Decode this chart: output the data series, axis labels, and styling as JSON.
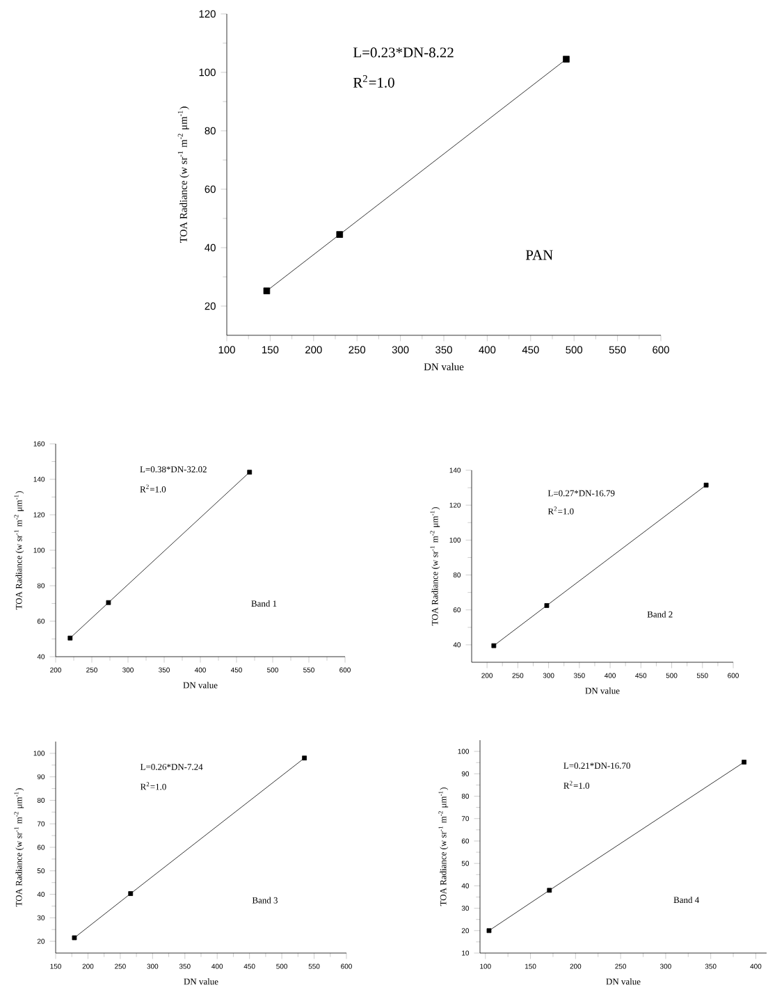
{
  "chart_data": [
    {
      "type": "line",
      "xlabel": "DN value",
      "ylabel": "TOA Radiance (w sr$^{-1}$ m$^{-2}$ μm$^{-1}$)",
      "x": [
        146,
        230,
        491
      ],
      "series": [
        {
          "color": "#000000",
          "values": [
            25.2,
            44.5,
            104.5
          ]
        }
      ],
      "xlim": [
        100,
        600
      ],
      "xticks": [
        100,
        150,
        200,
        250,
        300,
        350,
        400,
        450,
        500,
        550,
        600
      ],
      "ylim": [
        10,
        120
      ],
      "yticks": [
        20,
        40,
        60,
        80,
        100,
        120
      ],
      "annotations": [
        "L=0.23*DN-8.22",
        "R$^{2}$=1.0",
        "PAN"
      ],
      "marker": "square",
      "line_style": "solid",
      "grid": false
    },
    {
      "type": "line",
      "xlabel": "DN value",
      "ylabel": "TOA Radiance (w sr$^{-1}$ m$^{-2}$ μm$^{-1}$)",
      "x": [
        220,
        273,
        468
      ],
      "series": [
        {
          "color": "#000000",
          "values": [
            50.5,
            70.5,
            144
          ]
        }
      ],
      "xlim": [
        200,
        600
      ],
      "xticks": [
        200,
        250,
        300,
        350,
        400,
        450,
        500,
        550,
        600
      ],
      "ylim": [
        40,
        160
      ],
      "yticks": [
        40,
        60,
        80,
        100,
        120,
        140,
        160
      ],
      "annotations": [
        "L=0.38*DN-32.02",
        "R$^{2}$=1.0",
        "Band 1"
      ],
      "marker": "square",
      "line_style": "solid",
      "grid": false
    },
    {
      "type": "line",
      "xlabel": "DN value",
      "ylabel": "TOA Radiance (w sr$^{-1}$ m$^{-2}$ μm$^{-1}$)",
      "x": [
        211,
        297,
        556
      ],
      "series": [
        {
          "color": "#000000",
          "values": [
            39.5,
            62.5,
            131.5
          ]
        }
      ],
      "xlim": [
        175,
        600
      ],
      "xticks": [
        200,
        250,
        300,
        350,
        400,
        450,
        500,
        550,
        600
      ],
      "ylim": [
        30,
        140
      ],
      "yticks": [
        40,
        60,
        80,
        100,
        120,
        140
      ],
      "annotations": [
        "L=0.27*DN-16.79",
        "R$^{2}$=1.0",
        "Band 2"
      ],
      "marker": "square",
      "line_style": "solid",
      "grid": false
    },
    {
      "type": "line",
      "xlabel": "DN value",
      "ylabel": "TOA Radiance (w sr$^{-1}$ m$^{-2}$ μm$^{-1}$)",
      "x": [
        179,
        266,
        535
      ],
      "series": [
        {
          "color": "#000000",
          "values": [
            21.5,
            40.3,
            98
          ]
        }
      ],
      "xlim": [
        150,
        600
      ],
      "xticks": [
        150,
        200,
        250,
        300,
        350,
        400,
        450,
        500,
        550,
        600
      ],
      "ylim": [
        15,
        105
      ],
      "yticks": [
        20,
        30,
        40,
        50,
        60,
        70,
        80,
        90,
        100
      ],
      "annotations": [
        "L=0.26*DN-7.24",
        "R$^{2}$=1.0",
        "Band 3"
      ],
      "marker": "square",
      "line_style": "solid",
      "grid": false
    },
    {
      "type": "line",
      "xlabel": "DN value",
      "ylabel": "TOA Radiance (w sr$^{-1}$ m$^{-2}$ μm$^{-1}$)",
      "x": [
        104,
        171,
        387
      ],
      "series": [
        {
          "color": "#000000",
          "values": [
            20,
            38,
            95.2
          ]
        }
      ],
      "xlim": [
        94,
        412
      ],
      "xticks": [
        100,
        150,
        200,
        250,
        300,
        350,
        400
      ],
      "ylim": [
        10,
        105
      ],
      "yticks": [
        10,
        20,
        30,
        40,
        50,
        60,
        70,
        80,
        90,
        100
      ],
      "annotations": [
        "L=0.21*DN-16.70",
        "R$^{2}$=1.0",
        "Band 4"
      ],
      "marker": "square",
      "line_style": "solid",
      "grid": false
    }
  ]
}
